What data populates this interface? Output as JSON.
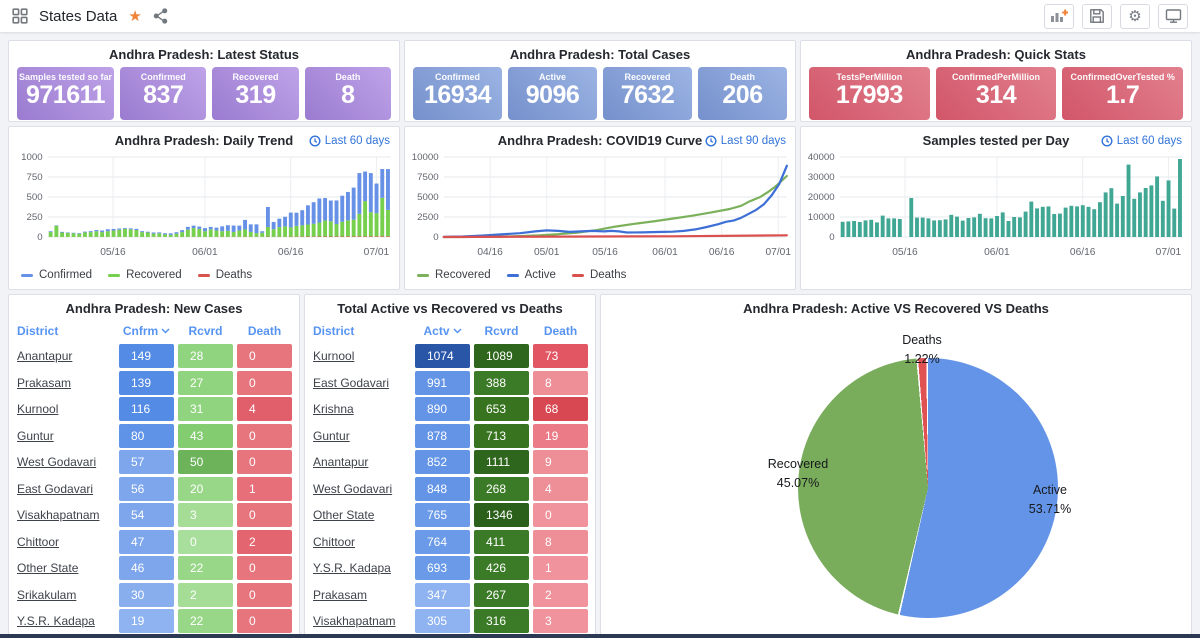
{
  "topbar": {
    "title": "States Data",
    "star_color": "#f08236",
    "actions": [
      "add-panel",
      "save-dashboard",
      "dashboard-settings",
      "cycle-view"
    ]
  },
  "stat_panels": [
    {
      "title": "Andhra Pradesh: Latest Status",
      "gradient": [
        "#bfa3e8",
        "#9a7bd0"
      ],
      "cards": [
        {
          "label": "Samples tested so far",
          "value": "971611"
        },
        {
          "label": "Confirmed",
          "value": "837"
        },
        {
          "label": "Recovered",
          "value": "319"
        },
        {
          "label": "Death",
          "value": "8"
        }
      ]
    },
    {
      "title": "Andhra Pradesh: Total Cases",
      "gradient": [
        "#9cb4e4",
        "#7590cc"
      ],
      "cards": [
        {
          "label": "Confirmed",
          "value": "16934"
        },
        {
          "label": "Active",
          "value": "9096"
        },
        {
          "label": "Recovered",
          "value": "7632"
        },
        {
          "label": "Death",
          "value": "206"
        }
      ]
    },
    {
      "title": "Andhra Pradesh: Quick Stats",
      "gradient": [
        "#e2808e",
        "#d15669"
      ],
      "cards": [
        {
          "label": "TestsPerMillion",
          "value": "17993"
        },
        {
          "label": "ConfirmedPerMillion",
          "value": "314"
        },
        {
          "label": "ConfirmedOverTested %",
          "value": "1.7"
        }
      ]
    }
  ],
  "chart_data": [
    {
      "id": "daily_trend",
      "type": "bar",
      "stacked": true,
      "title": "Andhra Pradesh: Daily Trend",
      "badge": "Last 60 days",
      "ylim": [
        0,
        1000
      ],
      "yticks": [
        0,
        250,
        500,
        750,
        1000
      ],
      "xticks": [
        {
          "label": "05/16",
          "pos": 0.19
        },
        {
          "label": "06/01",
          "pos": 0.458
        },
        {
          "label": "06/16",
          "pos": 0.708
        },
        {
          "label": "07/01",
          "pos": 0.958
        }
      ],
      "series": [
        {
          "name": "Deaths",
          "color": "#d9534f",
          "values": [
            2,
            1,
            1,
            2,
            1,
            1,
            2,
            1,
            2,
            1,
            2,
            1,
            1,
            2,
            1,
            2,
            1,
            1,
            2,
            1,
            2,
            1,
            2,
            1,
            2,
            2,
            1,
            2,
            1,
            2,
            3,
            2,
            3,
            2,
            4,
            3,
            3,
            2,
            5,
            3,
            4,
            3,
            5,
            4,
            5,
            6,
            5,
            6,
            7,
            6,
            7,
            6,
            8,
            7,
            9,
            8,
            9,
            8,
            10,
            9
          ]
        },
        {
          "name": "Recovered",
          "color": "#76cf4d",
          "values": [
            60,
            140,
            55,
            50,
            45,
            40,
            55,
            60,
            70,
            60,
            70,
            80,
            90,
            100,
            95,
            85,
            60,
            55,
            40,
            45,
            30,
            25,
            40,
            60,
            90,
            110,
            100,
            70,
            95,
            80,
            70,
            75,
            60,
            80,
            90,
            60,
            45,
            50,
            120,
            95,
            120,
            130,
            115,
            135,
            140,
            150,
            160,
            175,
            200,
            190,
            155,
            185,
            200,
            210,
            280,
            440,
            300,
            290,
            480,
            330
          ]
        },
        {
          "name": "Confirmed",
          "color": "#6691e6",
          "values": [
            10,
            5,
            8,
            6,
            7,
            8,
            10,
            12,
            15,
            20,
            25,
            20,
            15,
            10,
            12,
            15,
            12,
            10,
            15,
            12,
            15,
            20,
            18,
            25,
            35,
            30,
            30,
            40,
            30,
            35,
            60,
            70,
            80,
            60,
            120,
            95,
            110,
            20,
            250,
            90,
            105,
            120,
            185,
            165,
            190,
            240,
            270,
            300,
            280,
            260,
            295,
            325,
            355,
            400,
            510,
            370,
            490,
            370,
            360,
            510
          ]
        }
      ],
      "legend": [
        {
          "label": "Confirmed",
          "color": "#6691e6"
        },
        {
          "label": "Recovered",
          "color": "#76cf4d"
        },
        {
          "label": "Deaths",
          "color": "#d9534f"
        }
      ]
    },
    {
      "id": "covid_curve",
      "type": "line",
      "title": "Andhra Pradesh: COVID19 Curve",
      "badge": "Last 90 days",
      "ylim": [
        0,
        10000
      ],
      "yticks": [
        0,
        2500,
        5000,
        7500,
        10000
      ],
      "xmax": 90,
      "xticks": [
        {
          "label": "04/16",
          "pos": 0.135
        },
        {
          "label": "05/01",
          "pos": 0.3
        },
        {
          "label": "05/16",
          "pos": 0.47
        },
        {
          "label": "06/01",
          "pos": 0.645
        },
        {
          "label": "06/16",
          "pos": 0.81
        },
        {
          "label": "07/01",
          "pos": 0.975
        }
      ],
      "series": [
        {
          "name": "Recovered",
          "color": "#7cb15c",
          "points": [
            [
              0,
              0
            ],
            [
              5,
              5
            ],
            [
              10,
              20
            ],
            [
              15,
              50
            ],
            [
              20,
              110
            ],
            [
              25,
              200
            ],
            [
              30,
              350
            ],
            [
              35,
              550
            ],
            [
              40,
              850
            ],
            [
              45,
              1300
            ],
            [
              50,
              1650
            ],
            [
              55,
              1950
            ],
            [
              60,
              2300
            ],
            [
              65,
              2650
            ],
            [
              70,
              3050
            ],
            [
              75,
              3500
            ],
            [
              78,
              3900
            ],
            [
              80,
              4400
            ],
            [
              83,
              5000
            ],
            [
              85,
              5600
            ],
            [
              87,
              6300
            ],
            [
              90,
              7630
            ]
          ]
        },
        {
          "name": "Active",
          "color": "#3d6fd6",
          "points": [
            [
              0,
              10
            ],
            [
              5,
              60
            ],
            [
              10,
              170
            ],
            [
              15,
              320
            ],
            [
              20,
              480
            ],
            [
              24,
              700
            ],
            [
              27,
              820
            ],
            [
              30,
              760
            ],
            [
              33,
              640
            ],
            [
              36,
              700
            ],
            [
              39,
              760
            ],
            [
              42,
              700
            ],
            [
              44,
              760
            ],
            [
              46,
              700
            ],
            [
              48,
              560
            ],
            [
              52,
              580
            ],
            [
              56,
              620
            ],
            [
              60,
              660
            ],
            [
              63,
              760
            ],
            [
              66,
              950
            ],
            [
              69,
              1250
            ],
            [
              72,
              1600
            ],
            [
              74,
              1900
            ],
            [
              76,
              2050
            ],
            [
              78,
              2400
            ],
            [
              80,
              2900
            ],
            [
              82,
              3400
            ],
            [
              84,
              4100
            ],
            [
              86,
              5200
            ],
            [
              88,
              6600
            ],
            [
              90,
              8900
            ]
          ]
        },
        {
          "name": "Deaths",
          "color": "#d9504e",
          "points": [
            [
              0,
              5
            ],
            [
              30,
              50
            ],
            [
              60,
              90
            ],
            [
              90,
              210
            ]
          ]
        }
      ],
      "legend": [
        {
          "label": "Recovered",
          "color": "#7cb15c"
        },
        {
          "label": "Active",
          "color": "#3d6fd6"
        },
        {
          "label": "Deaths",
          "color": "#d9504e"
        }
      ]
    },
    {
      "id": "samples_per_day",
      "type": "bar",
      "stacked": false,
      "title": "Samples tested per Day",
      "badge": "Last 60 days",
      "ylim": [
        0,
        40000
      ],
      "yticks": [
        0,
        10000,
        20000,
        30000,
        40000
      ],
      "xticks": [
        {
          "label": "05/16",
          "pos": 0.19
        },
        {
          "label": "06/01",
          "pos": 0.458
        },
        {
          "label": "06/16",
          "pos": 0.708
        },
        {
          "label": "07/01",
          "pos": 0.958
        }
      ],
      "series": [
        {
          "name": "Samples",
          "color": "#41a795",
          "values": [
            7600,
            7800,
            8000,
            7500,
            8300,
            8600,
            7300,
            10700,
            9300,
            9300,
            9000,
            0,
            19500,
            9700,
            9700,
            9300,
            8300,
            8400,
            8800,
            11100,
            10200,
            8200,
            9500,
            9800,
            11600,
            9400,
            9300,
            10500,
            12300,
            8000,
            10000,
            9800,
            12700,
            17700,
            14300,
            15100,
            15300,
            11500,
            11700,
            14700,
            15600,
            15300,
            15900,
            15100,
            13900,
            17400,
            22300,
            24400,
            16700,
            20500,
            36200,
            19100,
            22300,
            24500,
            25800,
            30300,
            18100,
            28300,
            14200,
            39000
          ]
        }
      ],
      "legend": []
    },
    {
      "id": "active_recovered_deaths_pie",
      "type": "pie",
      "title": "Andhra Pradesh: Active VS Recovered VS Deaths",
      "slices": [
        {
          "label": "Active",
          "pct": 53.71,
          "pct_label": "53.71%",
          "color": "#6494e8"
        },
        {
          "label": "Recovered",
          "pct": 45.07,
          "pct_label": "45.07%",
          "color": "#79ad5c"
        },
        {
          "label": "Deaths",
          "pct": 1.22,
          "pct_label": "1.22%",
          "color": "#e05252"
        }
      ]
    }
  ],
  "tables": [
    {
      "title": "Andhra Pradesh: New Cases",
      "columns": [
        "District",
        "Cnfrm",
        "Rcvrd",
        "Death"
      ],
      "sort_col": "Cnfrm",
      "rows": [
        {
          "district": "Anantapur",
          "values": [
            149,
            28,
            0
          ],
          "colors": [
            "#548be4",
            "#90d47f",
            "#e6757e"
          ]
        },
        {
          "district": "Prakasam",
          "values": [
            139,
            27,
            0
          ],
          "colors": [
            "#548be4",
            "#90d47f",
            "#e6757e"
          ]
        },
        {
          "district": "Kurnool",
          "values": [
            116,
            31,
            4
          ],
          "colors": [
            "#548be4",
            "#90d47f",
            "#e05f6b"
          ]
        },
        {
          "district": "Guntur",
          "values": [
            80,
            43,
            0
          ],
          "colors": [
            "#5f93e7",
            "#83cc70",
            "#e6757e"
          ]
        },
        {
          "district": "West Godavari",
          "values": [
            57,
            50,
            0
          ],
          "colors": [
            "#7da6ec",
            "#6cb35a",
            "#e6757e"
          ]
        },
        {
          "district": "East Godavari",
          "values": [
            56,
            20,
            1
          ],
          "colors": [
            "#7da6ec",
            "#98d788",
            "#e66f79"
          ]
        },
        {
          "district": "Visakhapatnam",
          "values": [
            54,
            3,
            0
          ],
          "colors": [
            "#7da6ec",
            "#a5dd97",
            "#e6757e"
          ]
        },
        {
          "district": "Chittoor",
          "values": [
            47,
            0,
            2
          ],
          "colors": [
            "#7da6ec",
            "#a9df9c",
            "#e3656f"
          ]
        },
        {
          "district": "Other State",
          "values": [
            46,
            22,
            0
          ],
          "colors": [
            "#7da6ec",
            "#98d788",
            "#e6757e"
          ]
        },
        {
          "district": "Srikakulam",
          "values": [
            30,
            2,
            0
          ],
          "colors": [
            "#88aeee",
            "#a5dd97",
            "#e6757e"
          ]
        },
        {
          "district": "Y.S.R. Kadapa",
          "values": [
            19,
            22,
            0
          ],
          "colors": [
            "#8fb3f0",
            "#98d788",
            "#e6757e"
          ]
        }
      ],
      "sliver_colors": [
        "#7da6ec",
        "#98d788",
        "#e6757e"
      ]
    },
    {
      "title": "Total Active vs Recovered vs Deaths",
      "columns": [
        "District",
        "Actv",
        "Rcvrd",
        "Death"
      ],
      "sort_col": "Actv",
      "rows": [
        {
          "district": "Kurnool",
          "values": [
            1074,
            1089,
            73
          ],
          "colors": [
            "#2a56a8",
            "#2f661d",
            "#e25663"
          ]
        },
        {
          "district": "East Godavari",
          "values": [
            991,
            388,
            8
          ],
          "colors": [
            "#6394e6",
            "#3b7a26",
            "#ee8e96"
          ]
        },
        {
          "district": "Krishna",
          "values": [
            890,
            653,
            68
          ],
          "colors": [
            "#6394e6",
            "#38741f",
            "#d84853"
          ]
        },
        {
          "district": "Guntur",
          "values": [
            878,
            713,
            19
          ],
          "colors": [
            "#6394e6",
            "#38741f",
            "#ea7b87"
          ]
        },
        {
          "district": "Anantapur",
          "values": [
            852,
            1111,
            9
          ],
          "colors": [
            "#6394e6",
            "#2f661d",
            "#ee8e96"
          ]
        },
        {
          "district": "West Godavari",
          "values": [
            848,
            268,
            4
          ],
          "colors": [
            "#6394e6",
            "#3b7a26",
            "#ee8e96"
          ]
        },
        {
          "district": "Other State",
          "values": [
            765,
            1346,
            0
          ],
          "colors": [
            "#6a9ae8",
            "#2a601a",
            "#f0939c"
          ]
        },
        {
          "district": "Chittoor",
          "values": [
            764,
            411,
            8
          ],
          "colors": [
            "#6a9ae8",
            "#3b7a26",
            "#ee8e96"
          ]
        },
        {
          "district": "Y.S.R. Kadapa",
          "values": [
            693,
            426,
            1
          ],
          "colors": [
            "#6a9ae8",
            "#3b7a26",
            "#f0939c"
          ]
        },
        {
          "district": "Prakasam",
          "values": [
            347,
            267,
            2
          ],
          "colors": [
            "#8fb3f0",
            "#3b7a26",
            "#f0939c"
          ]
        },
        {
          "district": "Visakhapatnam",
          "values": [
            305,
            316,
            3
          ],
          "colors": [
            "#8fb3f0",
            "#3b7a26",
            "#f0939c"
          ]
        }
      ],
      "sliver_colors": [
        "#8fb3f0",
        "#2f661d",
        "#ee8e96"
      ]
    }
  ]
}
